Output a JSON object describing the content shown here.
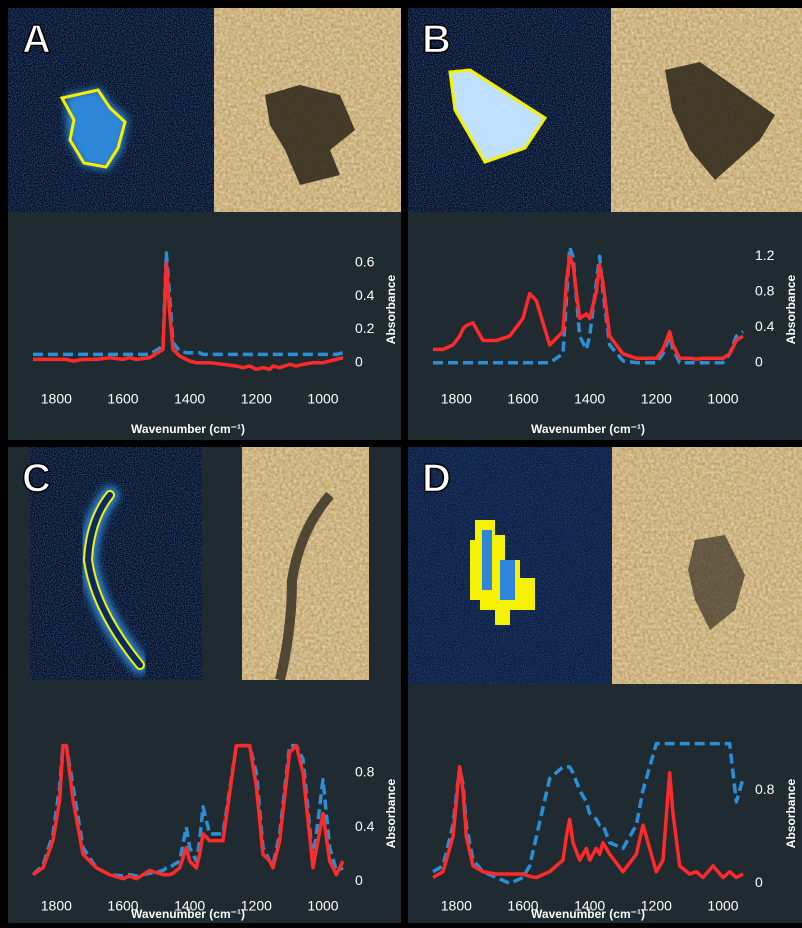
{
  "chart_data": [
    {
      "type": "line",
      "label": "A",
      "xlabel": "Wavenumber (cm⁻¹)",
      "ylabel": "Absorbance",
      "xlim": [
        1870,
        940
      ],
      "xticks": [
        1800,
        1600,
        1400,
        1200,
        1000
      ],
      "ylim": [
        -0.08,
        0.72
      ],
      "yticks": [
        0,
        0.2,
        0.4,
        0.6
      ],
      "x": [
        1870,
        1840,
        1810,
        1790,
        1780,
        1770,
        1750,
        1720,
        1680,
        1640,
        1600,
        1580,
        1560,
        1520,
        1480,
        1470,
        1460,
        1450,
        1430,
        1410,
        1400,
        1380,
        1370,
        1360,
        1340,
        1300,
        1260,
        1240,
        1220,
        1200,
        1180,
        1160,
        1150,
        1130,
        1100,
        1080,
        1060,
        1030,
        1000,
        980,
        960,
        940
      ],
      "series": [
        {
          "color": "#ff2a2a",
          "dash": false,
          "values": [
            0.02,
            0.02,
            0.02,
            0.02,
            0.02,
            0.02,
            0.01,
            0.02,
            0.02,
            0.03,
            0.02,
            0.03,
            0.02,
            0.03,
            0.08,
            0.6,
            0.3,
            0.08,
            0.04,
            0.02,
            0.01,
            0,
            0,
            0,
            0,
            -0.01,
            -0.02,
            -0.03,
            -0.02,
            -0.04,
            -0.03,
            -0.04,
            -0.02,
            -0.03,
            -0.01,
            -0.02,
            -0.01,
            0,
            0,
            0.01,
            0.02,
            0.03
          ]
        },
        {
          "color": "#2a8fd6",
          "dash": true,
          "values": [
            0.05,
            0.05,
            0.05,
            0.05,
            0.05,
            0.05,
            0.05,
            0.05,
            0.05,
            0.05,
            0.05,
            0.05,
            0.05,
            0.05,
            0.1,
            0.66,
            0.4,
            0.12,
            0.07,
            0.06,
            0.06,
            0.06,
            0.06,
            0.05,
            0.05,
            0.05,
            0.05,
            0.05,
            0.05,
            0.05,
            0.05,
            0.05,
            0.05,
            0.05,
            0.05,
            0.05,
            0.05,
            0.05,
            0.05,
            0.05,
            0.05,
            0.06
          ]
        }
      ]
    },
    {
      "type": "line",
      "label": "B",
      "xlabel": "Wavenumber (cm⁻¹)",
      "ylabel": "Absorbance",
      "xlim": [
        1870,
        940
      ],
      "xticks": [
        1800,
        1600,
        1400,
        1200,
        1000
      ],
      "ylim": [
        -0.15,
        1.35
      ],
      "yticks": [
        0,
        0.4,
        0.8,
        1.2
      ],
      "x": [
        1870,
        1840,
        1810,
        1790,
        1780,
        1770,
        1750,
        1720,
        1680,
        1640,
        1600,
        1580,
        1560,
        1520,
        1480,
        1470,
        1460,
        1450,
        1430,
        1410,
        1400,
        1380,
        1370,
        1360,
        1340,
        1300,
        1260,
        1240,
        1220,
        1200,
        1180,
        1160,
        1150,
        1130,
        1100,
        1080,
        1060,
        1030,
        1000,
        980,
        960,
        940
      ],
      "series": [
        {
          "color": "#ff2a2a",
          "dash": false,
          "values": [
            0.15,
            0.15,
            0.2,
            0.3,
            0.38,
            0.42,
            0.45,
            0.25,
            0.25,
            0.3,
            0.5,
            0.78,
            0.7,
            0.2,
            0.35,
            0.9,
            1.2,
            1.1,
            0.5,
            0.55,
            0.5,
            0.8,
            1.1,
            0.9,
            0.3,
            0.1,
            0.05,
            0.05,
            0.05,
            0.05,
            0.15,
            0.35,
            0.2,
            0.05,
            0.05,
            0.04,
            0.05,
            0.05,
            0.05,
            0.1,
            0.25,
            0.3
          ]
        },
        {
          "color": "#2a8fd6",
          "dash": true,
          "values": [
            0,
            0,
            0,
            0,
            0,
            0,
            0,
            0,
            0,
            0,
            0,
            0,
            0,
            0,
            0.1,
            0.7,
            1.3,
            1.2,
            0.3,
            0.15,
            0.3,
            0.9,
            1.2,
            0.8,
            0.2,
            0.02,
            0,
            0,
            0,
            0,
            0.1,
            0.3,
            0.15,
            0,
            0,
            0,
            0,
            0,
            0,
            0.1,
            0.3,
            0.35
          ]
        }
      ]
    },
    {
      "type": "line",
      "label": "C",
      "xlabel": "Wavenumber (cm⁻¹)",
      "ylabel": "Absorbance",
      "xlim": [
        1870,
        940
      ],
      "xticks": [
        1800,
        1600,
        1400,
        1200,
        1000
      ],
      "ylim": [
        -0.1,
        1.1
      ],
      "yticks": [
        0,
        0.4,
        0.8
      ],
      "x": [
        1870,
        1840,
        1810,
        1790,
        1780,
        1770,
        1750,
        1720,
        1680,
        1640,
        1600,
        1580,
        1560,
        1520,
        1480,
        1470,
        1460,
        1450,
        1430,
        1410,
        1400,
        1380,
        1370,
        1360,
        1340,
        1300,
        1260,
        1240,
        1220,
        1200,
        1180,
        1160,
        1150,
        1130,
        1100,
        1080,
        1060,
        1030,
        1000,
        980,
        960,
        940
      ],
      "series": [
        {
          "color": "#ff2a2a",
          "dash": false,
          "values": [
            0.05,
            0.1,
            0.3,
            0.6,
            1.0,
            1.0,
            0.6,
            0.2,
            0.1,
            0.05,
            0.02,
            0.04,
            0.02,
            0.08,
            0.05,
            0.05,
            0.05,
            0.06,
            0.1,
            0.25,
            0.15,
            0.1,
            0.2,
            0.35,
            0.3,
            0.3,
            1.0,
            1.0,
            1.0,
            0.7,
            0.2,
            0.15,
            0.1,
            0.3,
            0.95,
            1.0,
            0.8,
            0.1,
            0.5,
            0.15,
            0.05,
            0.15
          ]
        },
        {
          "color": "#2a8fd6",
          "dash": true,
          "values": [
            0.05,
            0.12,
            0.35,
            0.7,
            1.0,
            1.0,
            0.7,
            0.25,
            0.1,
            0.05,
            0.04,
            0.05,
            0.04,
            0.06,
            0.08,
            0.1,
            0.1,
            0.12,
            0.15,
            0.4,
            0.25,
            0.15,
            0.3,
            0.55,
            0.35,
            0.35,
            1.0,
            1.0,
            1.0,
            0.8,
            0.25,
            0.15,
            0.12,
            0.35,
            1.0,
            1.0,
            0.9,
            0.15,
            0.75,
            0.25,
            0.08,
            0.1
          ]
        }
      ]
    },
    {
      "type": "line",
      "label": "D",
      "xlabel": "Wavenumber (cm⁻¹)",
      "ylabel": "Absorbance",
      "xlim": [
        1870,
        940
      ],
      "xticks": [
        1800,
        1600,
        1400,
        1200,
        1000
      ],
      "ylim": [
        -0.1,
        1.3
      ],
      "yticks": [
        0,
        0.8
      ],
      "x": [
        1870,
        1840,
        1810,
        1790,
        1780,
        1770,
        1750,
        1720,
        1680,
        1640,
        1600,
        1580,
        1560,
        1520,
        1480,
        1470,
        1460,
        1450,
        1430,
        1410,
        1400,
        1380,
        1370,
        1360,
        1340,
        1300,
        1260,
        1240,
        1220,
        1200,
        1180,
        1160,
        1150,
        1130,
        1100,
        1080,
        1060,
        1030,
        1000,
        980,
        960,
        940
      ],
      "series": [
        {
          "color": "#ff2a2a",
          "dash": false,
          "values": [
            0.05,
            0.1,
            0.4,
            1.0,
            0.8,
            0.4,
            0.15,
            0.1,
            0.08,
            0.08,
            0.08,
            0.06,
            0.05,
            0.1,
            0.2,
            0.4,
            0.55,
            0.35,
            0.2,
            0.3,
            0.2,
            0.3,
            0.25,
            0.35,
            0.25,
            0.1,
            0.25,
            0.5,
            0.3,
            0.1,
            0.2,
            0.95,
            0.6,
            0.15,
            0.08,
            0.1,
            0.05,
            0.15,
            0.05,
            0.1,
            0.05,
            0.08
          ]
        },
        {
          "color": "#2a8fd6",
          "dash": true,
          "values": [
            0.1,
            0.15,
            0.5,
            1.0,
            0.85,
            0.5,
            0.2,
            0.1,
            0.05,
            0.0,
            0.05,
            0.15,
            0.4,
            0.9,
            1.0,
            1.0,
            1.0,
            0.95,
            0.8,
            0.7,
            0.6,
            0.55,
            0.5,
            0.5,
            0.35,
            0.3,
            0.5,
            0.8,
            1.0,
            1.2,
            1.2,
            1.2,
            1.2,
            1.2,
            1.2,
            1.2,
            1.2,
            1.2,
            1.2,
            1.2,
            0.7,
            0.9
          ]
        }
      ]
    }
  ]
}
